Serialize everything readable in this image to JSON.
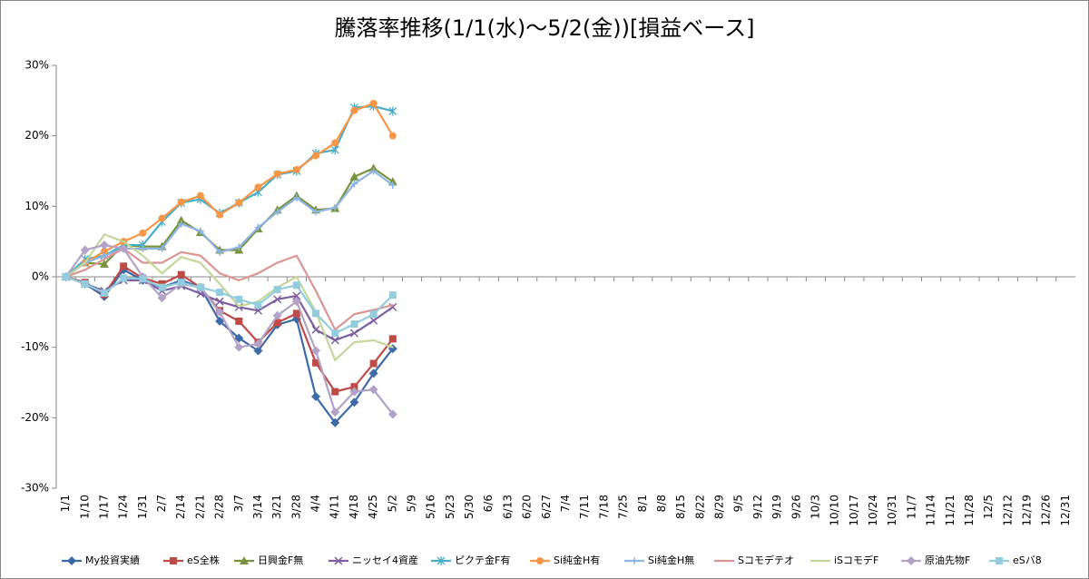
{
  "chart_data": {
    "type": "line",
    "title": "騰落率推移(1/1(水)～5/2(金))[損益ベース]",
    "categories": [
      "1/1",
      "1/10",
      "1/17",
      "1/24",
      "1/31",
      "2/7",
      "2/14",
      "2/21",
      "2/28",
      "3/7",
      "3/14",
      "3/21",
      "3/28",
      "4/4",
      "4/11",
      "4/18",
      "4/25",
      "5/2",
      "5/9",
      "5/16",
      "5/23",
      "5/30",
      "6/6",
      "6/13",
      "6/20",
      "6/27",
      "7/4",
      "7/11",
      "7/18",
      "7/25",
      "8/1",
      "8/8",
      "8/15",
      "8/22",
      "8/29",
      "9/5",
      "9/12",
      "9/19",
      "9/26",
      "10/3",
      "10/10",
      "10/17",
      "10/24",
      "10/31",
      "11/7",
      "11/14",
      "11/21",
      "11/28",
      "12/5",
      "12/12",
      "12/19",
      "12/26",
      "12/31"
    ],
    "ylim": [
      -30,
      30
    ],
    "yticks": [
      {
        "value": -30,
        "label": "-30%"
      },
      {
        "value": -20,
        "label": "-20%"
      },
      {
        "value": -10,
        "label": "-10%"
      },
      {
        "value": 0,
        "label": "0%"
      },
      {
        "value": 10,
        "label": "10%"
      },
      {
        "value": 20,
        "label": "20%"
      },
      {
        "value": 30,
        "label": "30%"
      }
    ],
    "legend": "bottom",
    "series": [
      {
        "name": "My投資実績",
        "color": "#3e6aa8",
        "marker": "diamond",
        "values": [
          0,
          -1,
          -2.8,
          1,
          -0.5,
          -1.5,
          -0.5,
          -1.5,
          -6.3,
          -8.7,
          -10.5,
          -6.8,
          -6,
          -17,
          -20.7,
          -17.8,
          -13.7,
          -10.2,
          null,
          null,
          null,
          null,
          null,
          null,
          null,
          null,
          null,
          null,
          null,
          null,
          null,
          null,
          null,
          null,
          null,
          null,
          null,
          null,
          null,
          null,
          null,
          null,
          null,
          null,
          null,
          null,
          null,
          null,
          null,
          null,
          null,
          null,
          null
        ]
      },
      {
        "name": "eS全株",
        "color": "#be4b48",
        "marker": "square",
        "values": [
          0,
          -0.8,
          -2.5,
          1.5,
          -0.2,
          -1,
          0.3,
          -1.5,
          -4.8,
          -6.3,
          -9.3,
          -6.5,
          -5.2,
          -12.2,
          -16.3,
          -15.6,
          -12.3,
          -8.8,
          null,
          null,
          null,
          null,
          null,
          null,
          null,
          null,
          null,
          null,
          null,
          null,
          null,
          null,
          null,
          null,
          null,
          null,
          null,
          null,
          null,
          null,
          null,
          null,
          null,
          null,
          null,
          null,
          null,
          null,
          null,
          null,
          null,
          null,
          null
        ]
      },
      {
        "name": "日興金F無",
        "color": "#77933c",
        "marker": "triangle",
        "values": [
          0,
          2,
          1.8,
          4.5,
          4.3,
          4.3,
          8,
          6.3,
          3.8,
          3.8,
          6.8,
          9.5,
          11.5,
          9.5,
          9.7,
          14.2,
          15.4,
          13.5,
          null,
          null,
          null,
          null,
          null,
          null,
          null,
          null,
          null,
          null,
          null,
          null,
          null,
          null,
          null,
          null,
          null,
          null,
          null,
          null,
          null,
          null,
          null,
          null,
          null,
          null,
          null,
          null,
          null,
          null,
          null,
          null,
          null,
          null,
          null
        ]
      },
      {
        "name": "ニッセイ4資産",
        "color": "#7d5fa0",
        "marker": "x",
        "values": [
          0,
          -1,
          -2,
          -0.5,
          -0.5,
          -2,
          -1.3,
          -2.4,
          -3.5,
          -4.3,
          -4.8,
          -3.2,
          -2.7,
          -7.5,
          -9,
          -8,
          -6.2,
          -4.3,
          null,
          null,
          null,
          null,
          null,
          null,
          null,
          null,
          null,
          null,
          null,
          null,
          null,
          null,
          null,
          null,
          null,
          null,
          null,
          null,
          null,
          null,
          null,
          null,
          null,
          null,
          null,
          null,
          null,
          null,
          null,
          null,
          null,
          null,
          null
        ]
      },
      {
        "name": "ピクテ金F有",
        "color": "#4bacc6",
        "marker": "star",
        "values": [
          0,
          2.5,
          3,
          4.5,
          4.5,
          7.8,
          10.5,
          11,
          9,
          10.5,
          12,
          14.5,
          15,
          17.5,
          18,
          24,
          24.2,
          23.5,
          null,
          null,
          null,
          null,
          null,
          null,
          null,
          null,
          null,
          null,
          null,
          null,
          null,
          null,
          null,
          null,
          null,
          null,
          null,
          null,
          null,
          null,
          null,
          null,
          null,
          null,
          null,
          null,
          null,
          null,
          null,
          null,
          null,
          null,
          null
        ]
      },
      {
        "name": "Si純金H有",
        "color": "#f79646",
        "marker": "circle",
        "values": [
          0,
          2,
          3.6,
          5,
          6.2,
          8.3,
          10.6,
          11.5,
          8.8,
          10.5,
          12.7,
          14.6,
          15.2,
          17.2,
          19,
          23.6,
          24.6,
          20,
          null,
          null,
          null,
          null,
          null,
          null,
          null,
          null,
          null,
          null,
          null,
          null,
          null,
          null,
          null,
          null,
          null,
          null,
          null,
          null,
          null,
          null,
          null,
          null,
          null,
          null,
          null,
          null,
          null,
          null,
          null,
          null,
          null,
          null,
          null
        ]
      },
      {
        "name": "Si純金H無",
        "color": "#8eb4e3",
        "marker": "plus",
        "values": [
          0,
          2,
          3,
          4,
          4,
          4,
          7.5,
          6.5,
          3.5,
          4.2,
          7,
          9.2,
          11.2,
          9.2,
          9.8,
          13.2,
          15,
          13,
          null,
          null,
          null,
          null,
          null,
          null,
          null,
          null,
          null,
          null,
          null,
          null,
          null,
          null,
          null,
          null,
          null,
          null,
          null,
          null,
          null,
          null,
          null,
          null,
          null,
          null,
          null,
          null,
          null,
          null,
          null,
          null,
          null,
          null,
          null
        ]
      },
      {
        "name": "Sコモデテオ",
        "color": "#d99694",
        "marker": "none",
        "values": [
          0,
          1,
          2.5,
          4,
          2,
          2,
          3.5,
          3,
          0.5,
          -0.5,
          0.5,
          2,
          3,
          -2,
          -7.5,
          -5.3,
          -4.7,
          -4,
          null,
          null,
          null,
          null,
          null,
          null,
          null,
          null,
          null,
          null,
          null,
          null,
          null,
          null,
          null,
          null,
          null,
          null,
          null,
          null,
          null,
          null,
          null,
          null,
          null,
          null,
          null,
          null,
          null,
          null,
          null,
          null,
          null,
          null,
          null
        ]
      },
      {
        "name": "iSコモデF",
        "color": "#c3d69b",
        "marker": "none",
        "values": [
          0,
          2,
          6,
          5,
          3,
          0.5,
          2.8,
          2,
          -1,
          -4.2,
          -3.5,
          -1.5,
          0,
          -5,
          -11.8,
          -9.3,
          -9,
          -10,
          null,
          null,
          null,
          null,
          null,
          null,
          null,
          null,
          null,
          null,
          null,
          null,
          null,
          null,
          null,
          null,
          null,
          null,
          null,
          null,
          null,
          null,
          null,
          null,
          null,
          null,
          null,
          null,
          null,
          null,
          null,
          null,
          null,
          null,
          null
        ]
      },
      {
        "name": "原油先物F",
        "color": "#b3a2c7",
        "marker": "diamond",
        "values": [
          0,
          3.8,
          4.5,
          4,
          0,
          -3,
          -1,
          -1.5,
          -5,
          -10,
          -9.5,
          -5.5,
          -3.5,
          -10.5,
          -19.2,
          -16.3,
          -16,
          -19.5,
          null,
          null,
          null,
          null,
          null,
          null,
          null,
          null,
          null,
          null,
          null,
          null,
          null,
          null,
          null,
          null,
          null,
          null,
          null,
          null,
          null,
          null,
          null,
          null,
          null,
          null,
          null,
          null,
          null,
          null,
          null,
          null,
          null,
          null,
          null
        ]
      },
      {
        "name": "eSバ8",
        "color": "#93cddd",
        "marker": "square",
        "values": [
          0,
          -1,
          -2.3,
          -0.2,
          -0.3,
          -1.5,
          -0.8,
          -1.5,
          -2.2,
          -3.2,
          -4,
          -1.8,
          -1.2,
          -5.2,
          -8,
          -6.7,
          -5.3,
          -2.6,
          null,
          null,
          null,
          null,
          null,
          null,
          null,
          null,
          null,
          null,
          null,
          null,
          null,
          null,
          null,
          null,
          null,
          null,
          null,
          null,
          null,
          null,
          null,
          null,
          null,
          null,
          null,
          null,
          null,
          null,
          null,
          null,
          null,
          null,
          null
        ]
      }
    ]
  }
}
